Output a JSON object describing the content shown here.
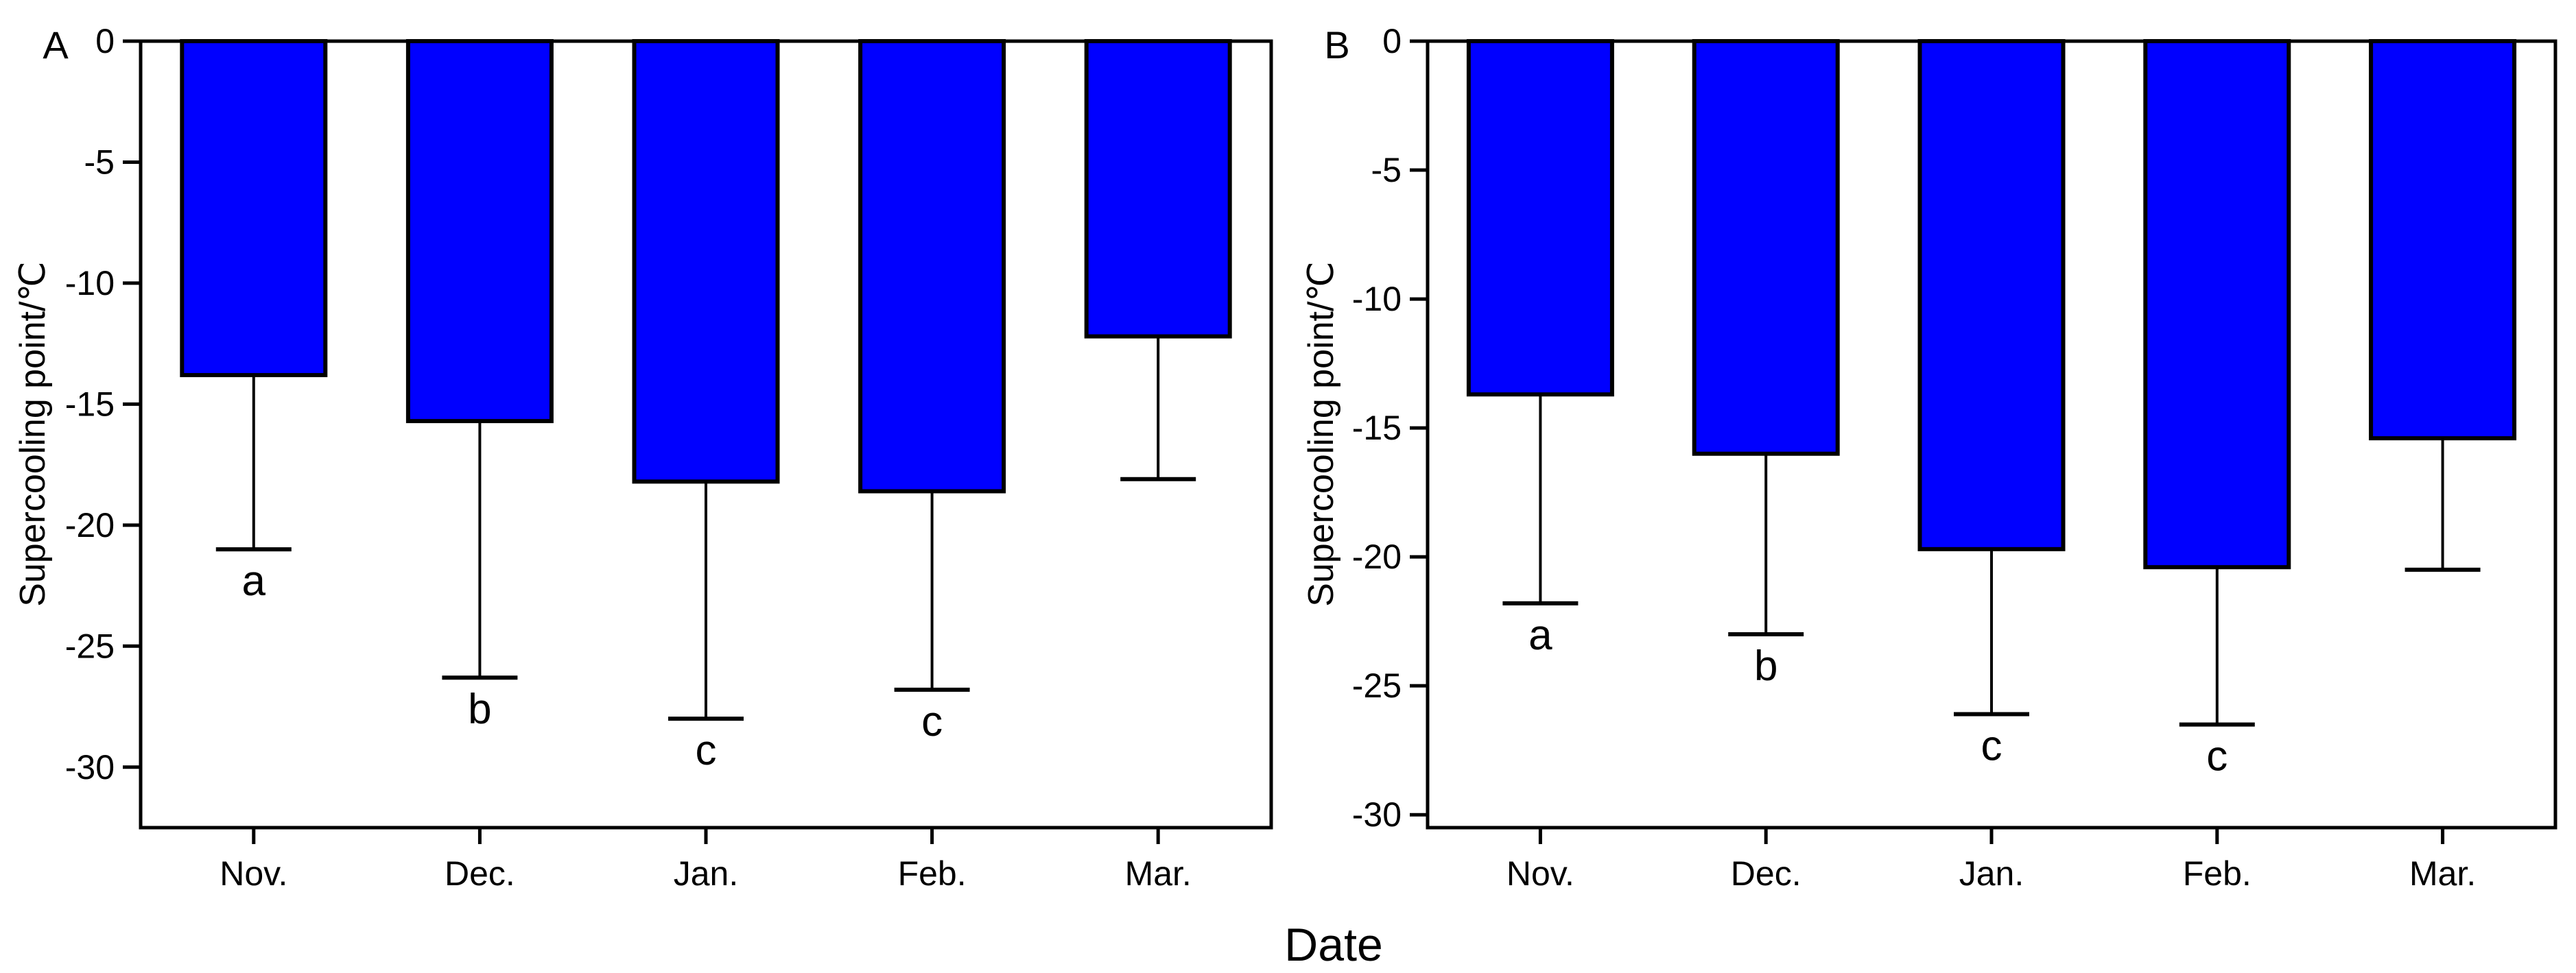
{
  "figure": {
    "xlabel": "Date",
    "background_color": "#ffffff",
    "axis_color": "#000000"
  },
  "chart_data": [
    {
      "type": "bar",
      "panel_label": "A",
      "ylabel": "Supercooling point/℃",
      "xlabel": "Date",
      "categories": [
        "Nov.",
        "Dec.",
        "Jan.",
        "Feb.",
        "Mar."
      ],
      "values": [
        -13.8,
        -15.7,
        -18.2,
        -18.6,
        -12.2
      ],
      "error_bar_ends": [
        -21.0,
        -26.3,
        -28.0,
        -26.8,
        -18.1
      ],
      "sig_letters": [
        "a",
        "b",
        "c",
        "c",
        ""
      ],
      "ylim": [
        -32.5,
        0
      ],
      "yticks": [
        0,
        -5,
        -10,
        -15,
        -20,
        -25,
        -30
      ],
      "bar_color": "#0000ff",
      "bar_border_color": "#000000",
      "grid": false,
      "error_bar_style": "one-sided downward with cap"
    },
    {
      "type": "bar",
      "panel_label": "B",
      "ylabel": "Supercooling point/℃",
      "xlabel": "Date",
      "categories": [
        "Nov.",
        "Dec.",
        "Jan.",
        "Feb.",
        "Mar."
      ],
      "values": [
        -13.7,
        -16.0,
        -19.7,
        -20.4,
        -15.4
      ],
      "error_bar_ends": [
        -21.8,
        -23.0,
        -26.1,
        -26.5,
        -20.5
      ],
      "sig_letters": [
        "a",
        "b",
        "c",
        "c",
        ""
      ],
      "ylim": [
        -30.5,
        0
      ],
      "yticks": [
        0,
        -5,
        -10,
        -15,
        -20,
        -25,
        -30
      ],
      "bar_color": "#0000ff",
      "bar_border_color": "#000000",
      "grid": false,
      "error_bar_style": "one-sided downward with cap"
    }
  ]
}
